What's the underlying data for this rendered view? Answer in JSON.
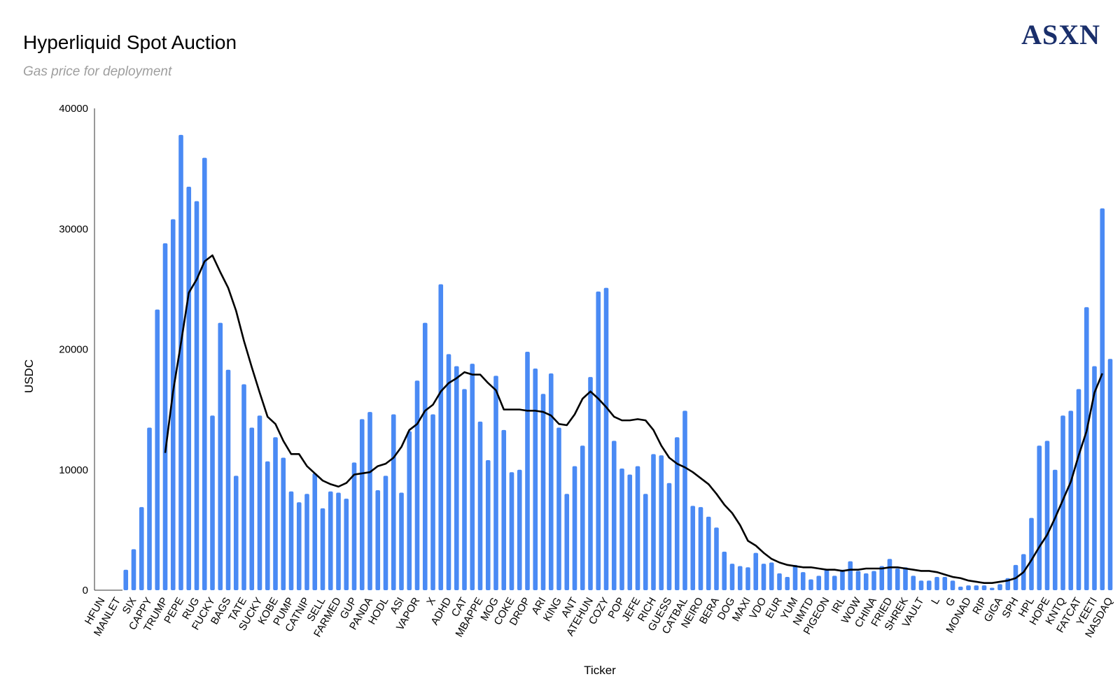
{
  "header": {
    "title": "Hyperliquid Spot Auction",
    "subtitle": "Gas price for deployment",
    "logo": "ASXN"
  },
  "chart_data": {
    "type": "bar",
    "title": "Hyperliquid Spot Auction",
    "subtitle": "Gas price for deployment",
    "xlabel": "Ticker",
    "ylabel": "USDC",
    "ylim": [
      0,
      40000
    ],
    "yticks": [
      0,
      10000,
      20000,
      30000,
      40000
    ],
    "bar_color": "#4a8af4",
    "line_color": "#000000",
    "categories": [
      "HFUN",
      "",
      "MANLET",
      "",
      "SIX",
      "",
      "CAPPY",
      "",
      "TRUMP",
      "",
      "PEPE",
      "",
      "RUG",
      "",
      "FUCKY",
      "",
      "BAGS",
      "",
      "TATE",
      "",
      "SUCKY",
      "",
      "KOBE",
      "",
      "PUMP",
      "",
      "CATNIP",
      "",
      "SELL",
      "",
      "FARMED",
      "",
      "GUP",
      "",
      "PANDA",
      "",
      "HODL",
      "",
      "ASI",
      "",
      "VAPOR",
      "",
      "X",
      "",
      "ADHD",
      "",
      "CAT",
      "",
      "MBAPPE",
      "",
      "MOG",
      "",
      "COKE",
      "",
      "DROP",
      "",
      "ARI",
      "",
      "KING",
      "",
      "ANT",
      "",
      "ATEHUN",
      "",
      "COZY",
      "",
      "POP",
      "",
      "JEFE",
      "",
      "RICH",
      "",
      "GUESS",
      "",
      "CATBAL",
      "",
      "NEIRO",
      "",
      "BERA",
      "",
      "DOG",
      "",
      "MAXI",
      "",
      "VDO",
      "",
      "EUR",
      "",
      "YUM",
      "",
      "NMTD",
      "",
      "PIGEON",
      "",
      "IRL",
      "",
      "WOW",
      "",
      "CHINA",
      "",
      "FRIED",
      "",
      "SHREK",
      "",
      "VAULT",
      "",
      "L",
      "",
      "G",
      "",
      "MONAD",
      "",
      "RIP",
      "",
      "GIGA",
      "",
      "SPH",
      "",
      "HPL",
      "",
      "HOPE",
      "",
      "KNTQ",
      "",
      "FATCAT",
      "",
      "YEETI",
      "",
      "NASDAQ"
    ],
    "values": [
      0,
      0,
      0,
      1700,
      3400,
      6900,
      13500,
      23300,
      28800,
      30800,
      37800,
      33500,
      32300,
      35900,
      14500,
      22200,
      18300,
      9500,
      17100,
      13500,
      14500,
      10700,
      12700,
      11000,
      8200,
      7300,
      8000,
      9700,
      6800,
      8200,
      8100,
      7600,
      10600,
      14200,
      14800,
      8300,
      9500,
      14600,
      8100,
      13200,
      17400,
      22200,
      14600,
      25400,
      19600,
      18600,
      16700,
      18800,
      14000,
      10800,
      17800,
      13300,
      9800,
      10000,
      19800,
      18400,
      16300,
      18000,
      13500,
      8000,
      10300,
      12000,
      17700,
      24800,
      25100,
      12400,
      10100,
      9600,
      10300,
      8000,
      11300,
      11200,
      8900,
      12700,
      14900,
      7000,
      6900,
      6100,
      5200,
      3200,
      2200,
      2000,
      1900,
      3100,
      2200,
      2300,
      1400,
      1100,
      2100,
      1500,
      900,
      1200,
      1700,
      1200,
      1700,
      2400,
      1600,
      1400,
      1600,
      2000,
      2600,
      1800,
      1900,
      1200,
      800,
      800,
      1100,
      1100,
      800,
      300,
      400,
      400,
      400,
      200,
      500,
      1000,
      2100,
      3000,
      6000,
      12000,
      12400,
      10000,
      14500,
      14900,
      16700,
      23500,
      18600,
      31700,
      19200
    ],
    "trend_line": {
      "start_index": 8,
      "values": [
        11400,
        16500,
        20500,
        24700,
        25800,
        27300,
        27800,
        26400,
        25100,
        23200,
        20700,
        18500,
        16400,
        14400,
        13800,
        12400,
        11300,
        11300,
        10300,
        9700,
        9100,
        8800,
        8600,
        8900,
        9600,
        9700,
        9800,
        10300,
        10500,
        11000,
        11900,
        13300,
        13800,
        14900,
        15400,
        16500,
        17200,
        17600,
        18100,
        17900,
        17900,
        17200,
        16600,
        15000,
        15000,
        15000,
        14900,
        14900,
        14800,
        14500,
        13800,
        13700,
        14600,
        15900,
        16500,
        15900,
        15200,
        14400,
        14100,
        14100,
        14200,
        14100,
        13300,
        12000,
        11000,
        10500,
        10200,
        9800,
        9300,
        8800,
        8000,
        7100,
        6400,
        5400,
        4100,
        3700,
        3100,
        2600,
        2300,
        2100,
        2000,
        1900,
        1900,
        1800,
        1700,
        1700,
        1600,
        1700,
        1700,
        1800,
        1800,
        1800,
        1900,
        1900,
        1800,
        1700,
        1600,
        1600,
        1500,
        1300,
        1100,
        1000,
        800,
        700,
        600,
        600,
        700,
        800,
        1000,
        1500,
        2500,
        3600,
        4600,
        6000,
        7500,
        9000,
        11200,
        13200,
        16400,
        18000
      ]
    }
  }
}
